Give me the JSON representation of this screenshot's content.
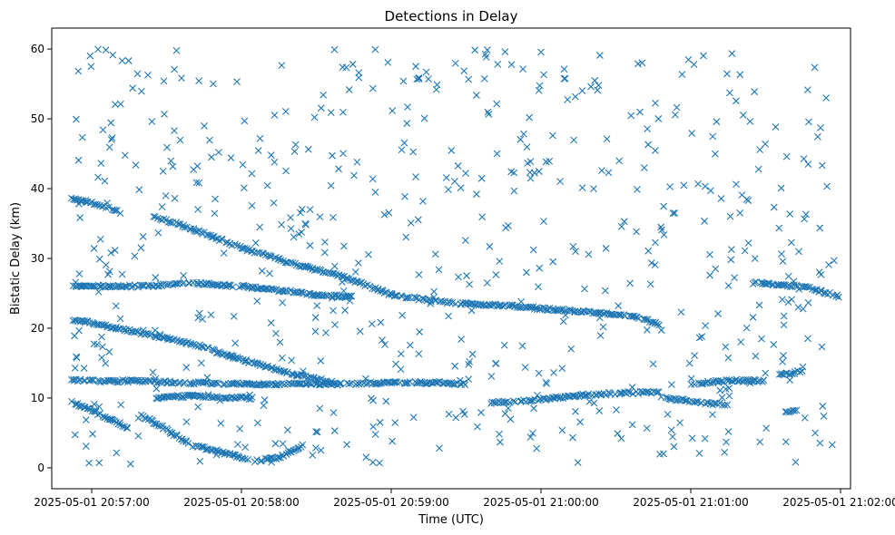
{
  "chart_data": {
    "type": "scatter",
    "title": "Detections in Delay",
    "xlabel": "Time (UTC)",
    "ylabel": "Bistatic Delay (km)",
    "marker": "x",
    "color": "#1f77b4",
    "x_unit": "time (HH:MM:SS on 2025-05-01)",
    "xlim": [
      "20:56:44",
      "21:02:04"
    ],
    "ylim": [
      -3,
      63
    ],
    "x_ticks": [
      {
        "t": "20:57:00",
        "label": "2025-05-01 20:57:00"
      },
      {
        "t": "20:58:00",
        "label": "2025-05-01 20:58:00"
      },
      {
        "t": "20:59:00",
        "label": "2025-05-01 20:59:00"
      },
      {
        "t": "21:00:00",
        "label": "2025-05-01 21:00:00"
      },
      {
        "t": "21:01:00",
        "label": "2025-05-01 21:01:00"
      },
      {
        "t": "21:02:00",
        "label": "2025-05-01 21:02:00"
      }
    ],
    "y_ticks": [
      0,
      10,
      20,
      30,
      40,
      50,
      60
    ],
    "grid": false,
    "legend": "none",
    "tracks": [
      {
        "points": [
          [
            "20:56:52",
            21.3
          ],
          [
            "20:57:20",
            19.3
          ],
          [
            "20:57:40",
            17.8
          ],
          [
            "20:58:00",
            15.5
          ],
          [
            "20:58:20",
            13.5
          ],
          [
            "20:58:40",
            12.0
          ]
        ]
      },
      {
        "points": [
          [
            "20:57:25",
            36.0
          ],
          [
            "20:57:40",
            34.3
          ],
          [
            "20:58:00",
            31.5
          ],
          [
            "20:58:20",
            29.3
          ],
          [
            "20:58:40",
            27.5
          ],
          [
            "20:59:00",
            24.8
          ],
          [
            "20:59:20",
            23.8
          ],
          [
            "20:59:30",
            23.5
          ]
        ]
      },
      {
        "points": [
          [
            "20:56:52",
            12.5
          ],
          [
            "20:57:20",
            12.4
          ],
          [
            "20:57:40",
            12.2
          ],
          [
            "20:58:00",
            12.0
          ],
          [
            "20:58:40",
            12.0
          ],
          [
            "20:59:00",
            12.2
          ],
          [
            "20:59:20",
            12.2
          ],
          [
            "20:59:30",
            12.0
          ]
        ]
      },
      {
        "points": [
          [
            "20:56:52",
            26.0
          ],
          [
            "20:57:20",
            26.0
          ],
          [
            "20:57:40",
            26.5
          ],
          [
            "20:58:00",
            26.0
          ],
          [
            "20:58:30",
            24.8
          ],
          [
            "20:58:45",
            24.5
          ]
        ]
      },
      {
        "points": [
          [
            "20:59:30",
            23.5
          ],
          [
            "20:59:45",
            23.3
          ],
          [
            "21:00:00",
            22.8
          ],
          [
            "21:00:20",
            22.3
          ],
          [
            "21:00:40",
            21.5
          ],
          [
            "21:00:48",
            20.5
          ]
        ]
      },
      {
        "points": [
          [
            "20:56:52",
            38.5
          ],
          [
            "20:56:58",
            38.2
          ],
          [
            "20:57:05",
            37.5
          ],
          [
            "20:57:12",
            36.5
          ]
        ]
      },
      {
        "points": [
          [
            "20:57:25",
            10.0
          ],
          [
            "20:57:40",
            10.3
          ],
          [
            "20:57:50",
            10.1
          ],
          [
            "20:58:05",
            10.0
          ]
        ]
      },
      {
        "points": [
          [
            "20:56:52",
            9.5
          ],
          [
            "20:57:00",
            8.2
          ],
          [
            "20:57:10",
            6.5
          ],
          [
            "20:57:15",
            5.5
          ]
        ]
      },
      {
        "points": [
          [
            "20:57:20",
            7.5
          ],
          [
            "20:57:30",
            5.5
          ],
          [
            "20:57:40",
            3.2
          ],
          [
            "20:57:50",
            2.4
          ],
          [
            "20:58:00",
            1.5
          ],
          [
            "20:58:03",
            1.0
          ]
        ]
      },
      {
        "points": [
          [
            "20:58:05",
            1.0
          ],
          [
            "20:58:10",
            1.2
          ],
          [
            "20:58:15",
            1.5
          ],
          [
            "20:58:22",
            2.6
          ],
          [
            "20:58:25",
            3.5
          ]
        ]
      },
      {
        "points": [
          [
            "20:59:40",
            9.3
          ],
          [
            "20:59:55",
            9.6
          ],
          [
            "21:00:05",
            10.0
          ],
          [
            "21:00:20",
            10.5
          ],
          [
            "21:00:40",
            10.8
          ],
          [
            "21:00:48",
            10.8
          ]
        ]
      },
      {
        "points": [
          [
            "21:00:50",
            10.0
          ],
          [
            "21:01:05",
            9.3
          ],
          [
            "21:01:15",
            9.0
          ]
        ]
      },
      {
        "points": [
          [
            "21:01:00",
            12.0
          ],
          [
            "21:01:15",
            12.5
          ],
          [
            "21:01:30",
            12.5
          ]
        ]
      },
      {
        "points": [
          [
            "21:01:25",
            26.5
          ],
          [
            "21:01:45",
            26.0
          ],
          [
            "21:02:00",
            24.5
          ]
        ]
      },
      {
        "points": [
          [
            "21:01:35",
            13.3
          ],
          [
            "21:01:40",
            13.5
          ],
          [
            "21:01:45",
            14.0
          ]
        ]
      },
      {
        "points": [
          [
            "21:01:38",
            8.0
          ],
          [
            "21:01:43",
            8.3
          ]
        ]
      }
    ],
    "scattered_points_note_excluded": true
  }
}
